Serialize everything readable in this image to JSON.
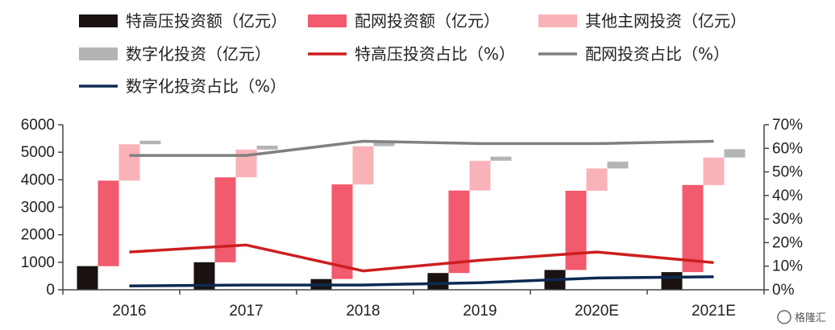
{
  "chart_data": {
    "type": "bar",
    "categories": [
      "2016",
      "2017",
      "2018",
      "2019",
      "2020E",
      "2021E"
    ],
    "series": [
      {
        "name": "特高压投资额（亿元）",
        "kind": "waterfall-bar",
        "axis": "left",
        "color": "#1a1210",
        "values": [
          860,
          1000,
          390,
          610,
          720,
          640
        ]
      },
      {
        "name": "配网投资额（亿元）",
        "kind": "waterfall-bar",
        "axis": "left",
        "color": "#f25a6e",
        "values": [
          3110,
          3090,
          3440,
          3000,
          2880,
          3170
        ]
      },
      {
        "name": "其他主网投资（亿元）",
        "kind": "waterfall-bar",
        "axis": "left",
        "color": "#f9b2b8",
        "values": [
          1320,
          1010,
          1390,
          1080,
          810,
          1000
        ]
      },
      {
        "name": "数字化投资（亿元）",
        "kind": "waterfall-bar",
        "axis": "left",
        "color": "#b4b4b4",
        "values": [
          130,
          140,
          130,
          150,
          250,
          300
        ]
      },
      {
        "name": "特高压投资占比（%）",
        "kind": "line",
        "axis": "right",
        "color": "#cc1f1f",
        "values": [
          16,
          19,
          8,
          12.5,
          16,
          11.5
        ]
      },
      {
        "name": "配网投资占比（%）",
        "kind": "line",
        "axis": "right",
        "color": "#808080",
        "values": [
          57,
          57,
          63,
          62,
          62,
          63
        ]
      },
      {
        "name": "数字化投资占比（%）",
        "kind": "line",
        "axis": "right",
        "color": "#0d2a52",
        "values": [
          1.6,
          2,
          2,
          3,
          5,
          5.5
        ]
      }
    ],
    "yleft": {
      "min": 0,
      "max": 6000,
      "step": 1000
    },
    "yright": {
      "min": 0,
      "max": 70,
      "step": 10,
      "suffix": "%"
    },
    "legend_position": "top"
  },
  "watermark": "格隆汇"
}
